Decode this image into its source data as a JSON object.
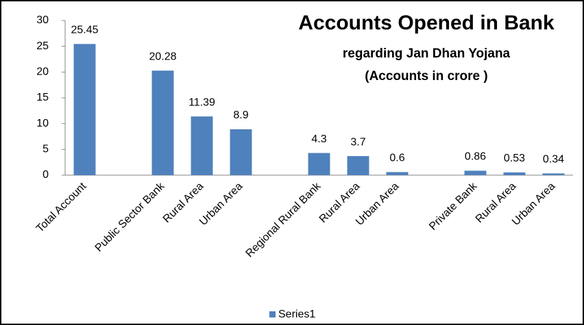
{
  "chart_data": {
    "type": "bar",
    "title": "Accounts Opened in Bank",
    "subtitle": [
      "regarding  Jan Dhan Yojana",
      "(Accounts in crore )"
    ],
    "categories": [
      "Total Account",
      null,
      "Public Sector Bank",
      "Rural Area",
      "Urban Area",
      null,
      "Regional Rural Bank",
      "Rural Area",
      "Urban Area",
      null,
      "Private Bank",
      "Rural Area",
      "Urban Area"
    ],
    "series": [
      {
        "name": "Series1",
        "color": "#4f81bd",
        "values": [
          25.45,
          null,
          20.28,
          11.39,
          8.9,
          null,
          4.3,
          3.7,
          0.6,
          null,
          0.86,
          0.53,
          0.34
        ]
      }
    ],
    "ylim": [
      0,
      30
    ],
    "yticks": [
      0,
      5,
      10,
      15,
      20,
      25,
      30
    ],
    "grid": false,
    "legend": "bottom"
  }
}
